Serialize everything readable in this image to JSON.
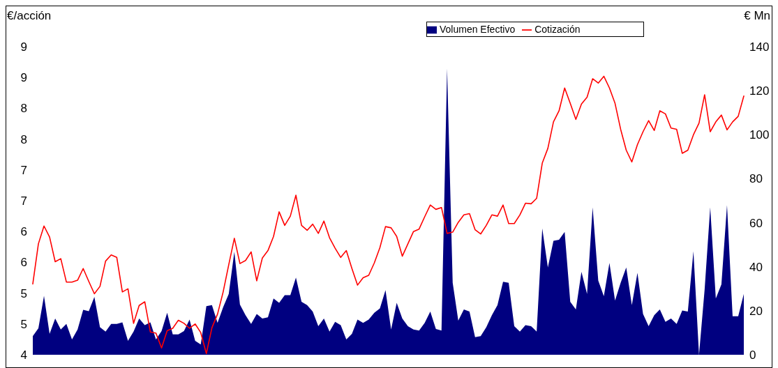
{
  "chart_data": {
    "type": "line",
    "ylabel": "€/acción",
    "y2label": "€ Mn",
    "legend": "top right",
    "grid": false,
    "categories": [
      null,
      null,
      null,
      null,
      null,
      null,
      null,
      null,
      null,
      null,
      null,
      null,
      null,
      null,
      null,
      null,
      null,
      null,
      null,
      null,
      null,
      null,
      null,
      null,
      null,
      null,
      null,
      null,
      null,
      null,
      null,
      null,
      null,
      null,
      null,
      null,
      null,
      null,
      null,
      null,
      null,
      null,
      null,
      null,
      null,
      null,
      null,
      null,
      null,
      null,
      null,
      null,
      null,
      null,
      null,
      null,
      null,
      null,
      null,
      null,
      null,
      null,
      null,
      null,
      null,
      null,
      null,
      null,
      null,
      null,
      null,
      null,
      null,
      null,
      null,
      null,
      null,
      null,
      null,
      null,
      null,
      null,
      null,
      null,
      null,
      null,
      null,
      null,
      null,
      null,
      null,
      null,
      null,
      null,
      null,
      null,
      null,
      null,
      null,
      null,
      null,
      null,
      null,
      null,
      null,
      null,
      null,
      null,
      null,
      null,
      null,
      null,
      null,
      null,
      null,
      null,
      null,
      null,
      null,
      null,
      null,
      null,
      null,
      null,
      null,
      null,
      null,
      null
    ],
    "ylim": [
      4,
      9
    ],
    "yticks": [
      4,
      {
        "value": 4.5,
        "label": "5"
      },
      5,
      {
        "value": 5.5,
        "label": "6"
      },
      6,
      {
        "value": 6.5,
        "label": "7"
      },
      7,
      {
        "value": 7.5,
        "label": "8"
      },
      8,
      {
        "value": 8.5,
        "label": "9"
      },
      9
    ],
    "y2lim": [
      0,
      140
    ],
    "y2ticks": [
      0,
      20,
      40,
      60,
      80,
      100,
      120,
      140
    ],
    "series": [
      {
        "name": "Volumen Efectivo",
        "type": "area",
        "axis": "y2",
        "color": "#000080",
        "values": [
          8.5,
          12.0,
          26.8,
          9.5,
          16.5,
          11.5,
          14.0,
          7.0,
          11.5,
          20.4,
          19.8,
          26.3,
          12.5,
          10.5,
          14.0,
          14.0,
          14.7,
          6.3,
          10.5,
          16.5,
          13.5,
          14.7,
          7.0,
          10.8,
          19.1,
          9.3,
          9.3,
          10.8,
          16.0,
          6.3,
          4.7,
          22.1,
          22.6,
          14.5,
          21.6,
          27.6,
          46.8,
          22.8,
          18.0,
          14.0,
          18.5,
          16.5,
          17.0,
          25.6,
          23.6,
          27.1,
          27.1,
          35.1,
          24.1,
          22.6,
          19.6,
          13.0,
          16.5,
          10.5,
          15.0,
          13.5,
          7.0,
          9.5,
          16.0,
          14.5,
          16.0,
          19.1,
          21.1,
          29.4,
          11.5,
          23.6,
          16.5,
          13.0,
          11.5,
          11.0,
          14.5,
          19.6,
          11.7,
          11.0,
          130,
          32.7,
          15.5,
          20.6,
          19.6,
          8.0,
          8.5,
          12.5,
          18.0,
          22.6,
          33.2,
          32.7,
          13.0,
          10.5,
          13.5,
          13.0,
          10.5,
          57.4,
          39.7,
          51.8,
          52.3,
          55.8,
          24.1,
          20.6,
          37.7,
          27.6,
          67,
          33.7,
          26.6,
          41.7,
          24.6,
          32.7,
          39.7,
          22.6,
          37.2,
          18.5,
          13.0,
          18.0,
          20.6,
          15.0,
          16.5,
          14.0,
          20.1,
          19.6,
          47,
          0,
          29.6,
          67,
          25.6,
          32.0,
          68,
          17.5,
          17.5,
          27.6
        ]
      },
      {
        "name": "Cotización",
        "color": "#ff0000",
        "values": [
          5.15,
          5.8,
          6.09,
          5.91,
          5.51,
          5.56,
          5.18,
          5.18,
          5.21,
          5.4,
          5.19,
          4.99,
          5.11,
          5.52,
          5.62,
          5.58,
          5.02,
          5.07,
          4.51,
          4.8,
          4.86,
          4.37,
          4.35,
          4.11,
          4.39,
          4.43,
          4.56,
          4.51,
          4.43,
          4.5,
          4.36,
          4.02,
          4.44,
          4.66,
          5.02,
          5.46,
          5.89,
          5.48,
          5.53,
          5.67,
          5.2,
          5.57,
          5.69,
          5.92,
          6.32,
          6.1,
          6.25,
          6.59,
          6.1,
          6.02,
          6.12,
          5.97,
          6.17,
          5.9,
          5.73,
          5.58,
          5.69,
          5.4,
          5.13,
          5.25,
          5.29,
          5.49,
          5.74,
          6.08,
          6.06,
          5.92,
          5.6,
          5.8,
          6.0,
          6.04,
          6.24,
          6.43,
          6.36,
          6.39,
          5.97,
          5.99,
          6.15,
          6.27,
          6.29,
          6.03,
          5.96,
          6.1,
          6.27,
          6.25,
          6.43,
          6.13,
          6.13,
          6.27,
          6.46,
          6.45,
          6.54,
          7.11,
          7.35,
          7.78,
          7.96,
          8.33,
          8.08,
          7.82,
          8.07,
          8.18,
          8.48,
          8.41,
          8.52,
          8.33,
          8.08,
          7.66,
          7.32,
          7.13,
          7.41,
          7.62,
          7.8,
          7.64,
          7.96,
          7.91,
          7.68,
          7.66,
          7.27,
          7.32,
          7.57,
          7.76,
          8.22,
          7.62,
          7.78,
          7.89,
          7.65,
          7.78,
          7.87,
          8.2
        ]
      }
    ]
  }
}
